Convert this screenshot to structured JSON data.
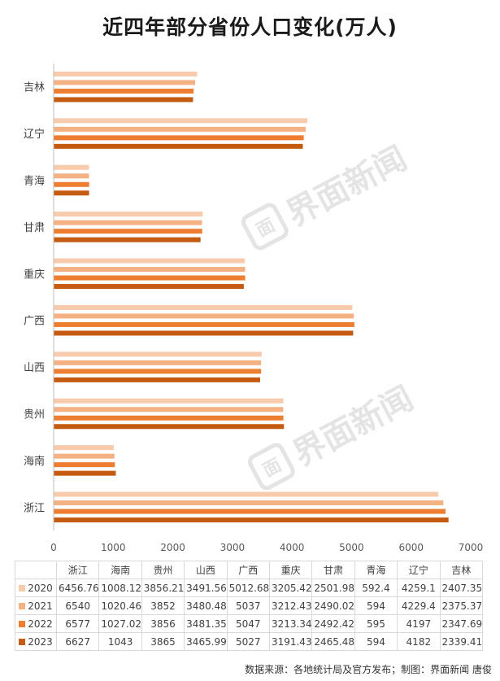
{
  "title": "近四年部分省份人口变化(万人)",
  "source": "数据来源：各地统计局及官方发布；制图：界面新闻 唐俊",
  "watermark": "界面新闻",
  "watermark_logo": "面",
  "chart_data": {
    "type": "bar",
    "orientation": "horizontal",
    "title": "近四年部分省份人口变化(万人)",
    "categories": [
      "浙江",
      "海南",
      "贵州",
      "山西",
      "广西",
      "重庆",
      "甘肃",
      "青海",
      "辽宁",
      "吉林"
    ],
    "series": [
      {
        "name": "2020",
        "color": "#f8cbad",
        "values": [
          6456.76,
          1008.12,
          3856.21,
          3491.56,
          5012.68,
          3205.42,
          2501.98,
          592.4,
          4259.1,
          2407.35
        ]
      },
      {
        "name": "2021",
        "color": "#f4b183",
        "values": [
          6540,
          1020.46,
          3852,
          3480.48,
          5037,
          3212.43,
          2490.02,
          594,
          4229.4,
          2375.37
        ]
      },
      {
        "name": "2022",
        "color": "#ed7d31",
        "values": [
          6577,
          1027.02,
          3856,
          3481.35,
          5047,
          3213.34,
          2492.42,
          595,
          4197,
          2347.69
        ]
      },
      {
        "name": "2023",
        "color": "#c55a11",
        "values": [
          6627,
          1043,
          3865,
          3465.99,
          5027,
          3191.43,
          2465.48,
          594,
          4182,
          2339.41
        ]
      }
    ],
    "table_values": [
      [
        "6456.76",
        "1008.12",
        "3856.21",
        "3491.56",
        "5012.68",
        "3205.42",
        "2501.98",
        "592.4",
        "4259.1",
        "2407.35"
      ],
      [
        "6540",
        "1020.46",
        "3852",
        "3480.48",
        "5037",
        "3212.43",
        "2490.02",
        "594",
        "4229.4",
        "2375.37"
      ],
      [
        "6577",
        "1027.02",
        "3856",
        "3481.35",
        "5047",
        "3213.34",
        "2492.42",
        "595",
        "4197",
        "2347.69"
      ],
      [
        "6627",
        "1043",
        "3865",
        "3465.99",
        "5027",
        "3191.43",
        "2465.48",
        "594",
        "4182",
        "2339.41"
      ]
    ],
    "xlim": [
      0,
      7000
    ],
    "x_ticks": [
      "0",
      "1000",
      "2000",
      "3000",
      "4000",
      "5000",
      "6000",
      "7000"
    ],
    "grid": false,
    "legend": "table-below"
  }
}
